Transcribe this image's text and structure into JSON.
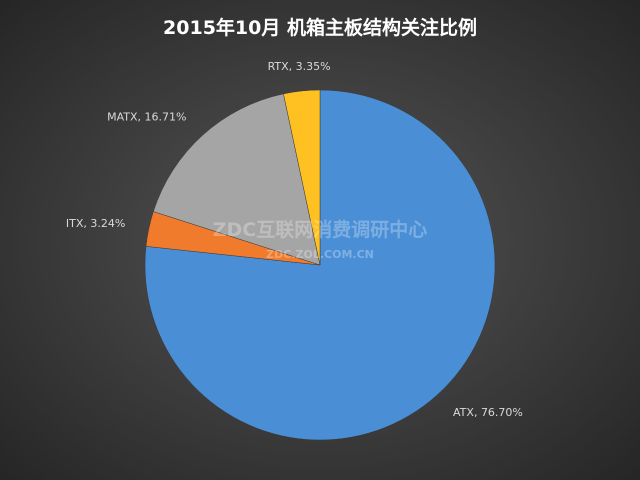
{
  "chart_data": {
    "type": "pie",
    "title": "2015年10月  机箱主板结构关注比例",
    "categories": [
      "ATX",
      "ITX",
      "MATX",
      "RTX"
    ],
    "values": [
      76.7,
      3.24,
      16.71,
      3.35
    ],
    "value_labels": [
      "76.70%",
      "3.24%",
      "16.71%",
      "3.35%"
    ],
    "colors": [
      "#4a8fd6",
      "#f07b2c",
      "#a5a5a5",
      "#ffc021"
    ],
    "watermark": "ZDC互联网消费调研中心",
    "watermark_url": "ZDC.ZOL.COM.CN"
  }
}
